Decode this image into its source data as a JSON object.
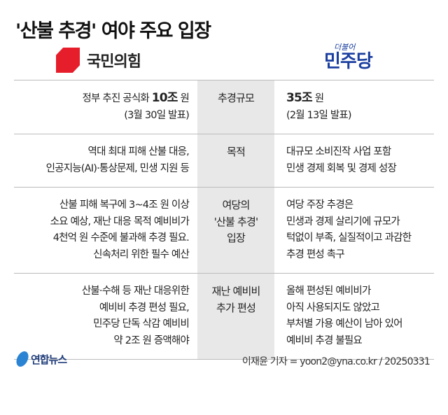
{
  "title": "'산불 추경' 여야 주요 입장",
  "parties": {
    "left": {
      "name": "국민의힘",
      "color": "#e61e2b"
    },
    "right": {
      "name": "민주당",
      "prefix": "더불어",
      "color": "#1b3fa0"
    }
  },
  "rows": [
    {
      "topic": "추경규모",
      "left_bold": "10조",
      "left_pre": "정부 추진 공식화 ",
      "left_post": " 원\n(3월 30일 발표)",
      "right_bold": "35조",
      "right_post": " 원\n(2월 13일 발표)"
    },
    {
      "topic": "목적",
      "left": "역대 최대 피해 산불 대응,\n인공지능(AI)·통상문제, 민생 지원 등",
      "right": "대규모 소비진작 사업 포함\n민생 경제 회복 및 경제 성장"
    },
    {
      "topic": "여당의\n'산불 추경'\n입장",
      "left": "산불 피해 복구에 3~4조 원 이상\n소요 예상, 재난 대응 목적 예비비가\n4천억 원 수준에 불과해 추경 필요.\n신속처리 위한 필수 예산",
      "right": "여당 주장 추경은\n민생과 경제 살리기에 규모가\n턱없이 부족, 실질적이고 과감한\n추경 편성 촉구"
    },
    {
      "topic": "재난 예비비\n추가 편성",
      "left": "산불·수해 등 재난 대응위한\n예비비 추경 편성 필요,\n민주당 단독 삭감 예비비\n약 2조 원 증액해야",
      "right": "올해 편성된 예비비가\n아직 사용되지도 않았고\n부처별 가용 예산이 남아 있어\n예비비 추경 불필요"
    }
  ],
  "footer": {
    "brand": "연합뉴스",
    "credit": "이재윤 기자 = yoon2@yna.co.kr / 20250331"
  }
}
